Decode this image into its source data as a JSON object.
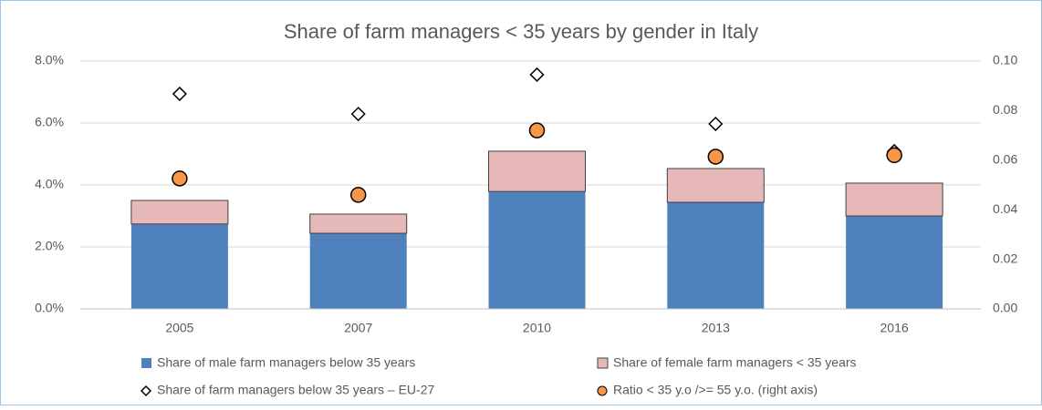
{
  "chart_data": {
    "type": "bar",
    "title": "Share of farm managers < 35 years by gender in Italy",
    "categories": [
      "2005",
      "2007",
      "2010",
      "2013",
      "2016"
    ],
    "series": [
      {
        "name": "Share of male farm managers below 35 years",
        "type": "bar",
        "stacked": true,
        "color": "#4f81bd",
        "values": [
          2.74,
          2.44,
          3.79,
          3.44,
          3.0
        ]
      },
      {
        "name": "Share of female farm managers < 35 years",
        "type": "bar",
        "stacked": true,
        "color": "#e6b9b8",
        "values": [
          0.76,
          0.62,
          1.3,
          1.09,
          1.06
        ]
      },
      {
        "name": "Share of farm managers below 35 years – EU-27",
        "type": "scatter",
        "marker": "diamond",
        "color": "#ffffff",
        "values": [
          6.94,
          6.29,
          7.56,
          5.97,
          5.09
        ]
      },
      {
        "name": "Ratio < 35 y.o />= 55 y.o. (right axis)",
        "type": "scatter",
        "marker": "circle",
        "color": "#f79646",
        "axis": "y2",
        "values": [
          0.0526,
          0.046,
          0.072,
          0.0614,
          0.062
        ]
      }
    ],
    "ylim": [
      0,
      8
    ],
    "yticks": [
      {
        "value": 0,
        "label": "0.0%"
      },
      {
        "value": 2,
        "label": "2.0%"
      },
      {
        "value": 4,
        "label": "4.0%"
      },
      {
        "value": 6,
        "label": "6.0%"
      },
      {
        "value": 8,
        "label": "8.0%"
      }
    ],
    "y2lim": [
      0,
      0.1
    ],
    "y2ticks": [
      {
        "value": 0,
        "label": "0.00"
      },
      {
        "value": 0.02,
        "label": "0.02"
      },
      {
        "value": 0.04,
        "label": "0.04"
      },
      {
        "value": 0.06,
        "label": "0.06"
      },
      {
        "value": 0.08,
        "label": "0.08"
      },
      {
        "value": 0.1,
        "label": "0.10"
      }
    ],
    "grid": true
  }
}
